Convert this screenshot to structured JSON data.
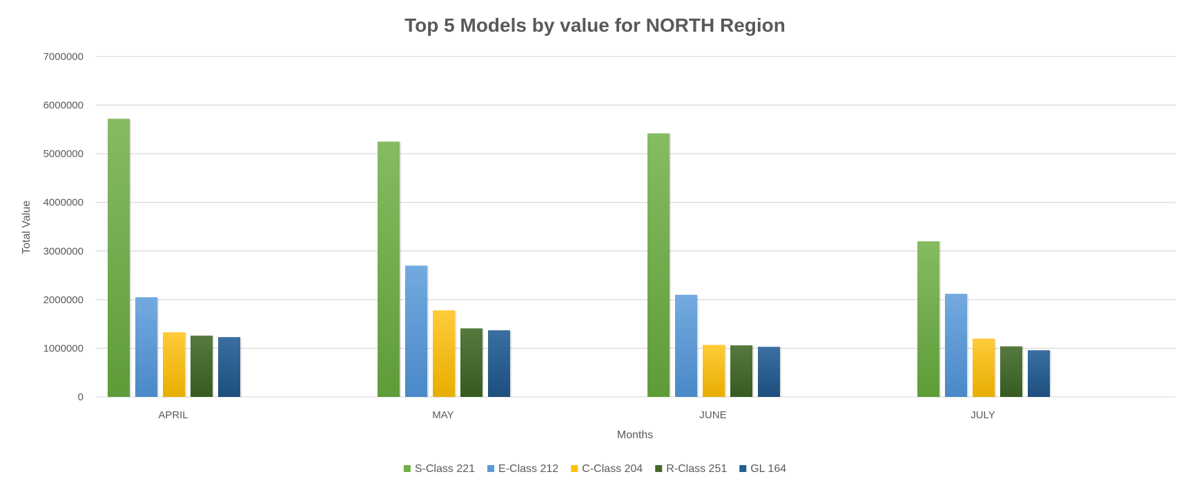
{
  "chart_data": {
    "type": "bar",
    "title": "Top 5 Models by value for NORTH Region",
    "xlabel": "Months",
    "ylabel": "Total Value",
    "categories": [
      "APRIL",
      "MAY",
      "JUNE",
      "JULY"
    ],
    "ylim": [
      0,
      7000000
    ],
    "yticks": [
      "0",
      "1000000",
      "2000000",
      "3000000",
      "4000000",
      "5000000",
      "6000000",
      "7000000"
    ],
    "grid": true,
    "legend_position": "bottom",
    "series": [
      {
        "name": "S-Class 221",
        "values": [
          5720000,
          5250000,
          5420000,
          3200000
        ],
        "color": "#70ad47",
        "color_light": "#86bb62",
        "color_dark": "#5e9c38"
      },
      {
        "name": "E-Class 212",
        "values": [
          2050000,
          2700000,
          2100000,
          2120000
        ],
        "color": "#5b9bd5",
        "color_light": "#73aae0",
        "color_dark": "#4a88c7"
      },
      {
        "name": "C-Class 204",
        "values": [
          1330000,
          1780000,
          1070000,
          1200000
        ],
        "color": "#ffc000",
        "color_light": "#ffcb3a",
        "color_dark": "#e8ae00"
      },
      {
        "name": "R-Class 251",
        "values": [
          1260000,
          1410000,
          1060000,
          1040000
        ],
        "color": "#43682b",
        "color_light": "#567a3e",
        "color_dark": "#365a20"
      },
      {
        "name": "GL 164",
        "values": [
          1230000,
          1370000,
          1030000,
          960000
        ],
        "color": "#255e91",
        "color_light": "#3a6fa0",
        "color_dark": "#1c4f7e"
      }
    ]
  }
}
